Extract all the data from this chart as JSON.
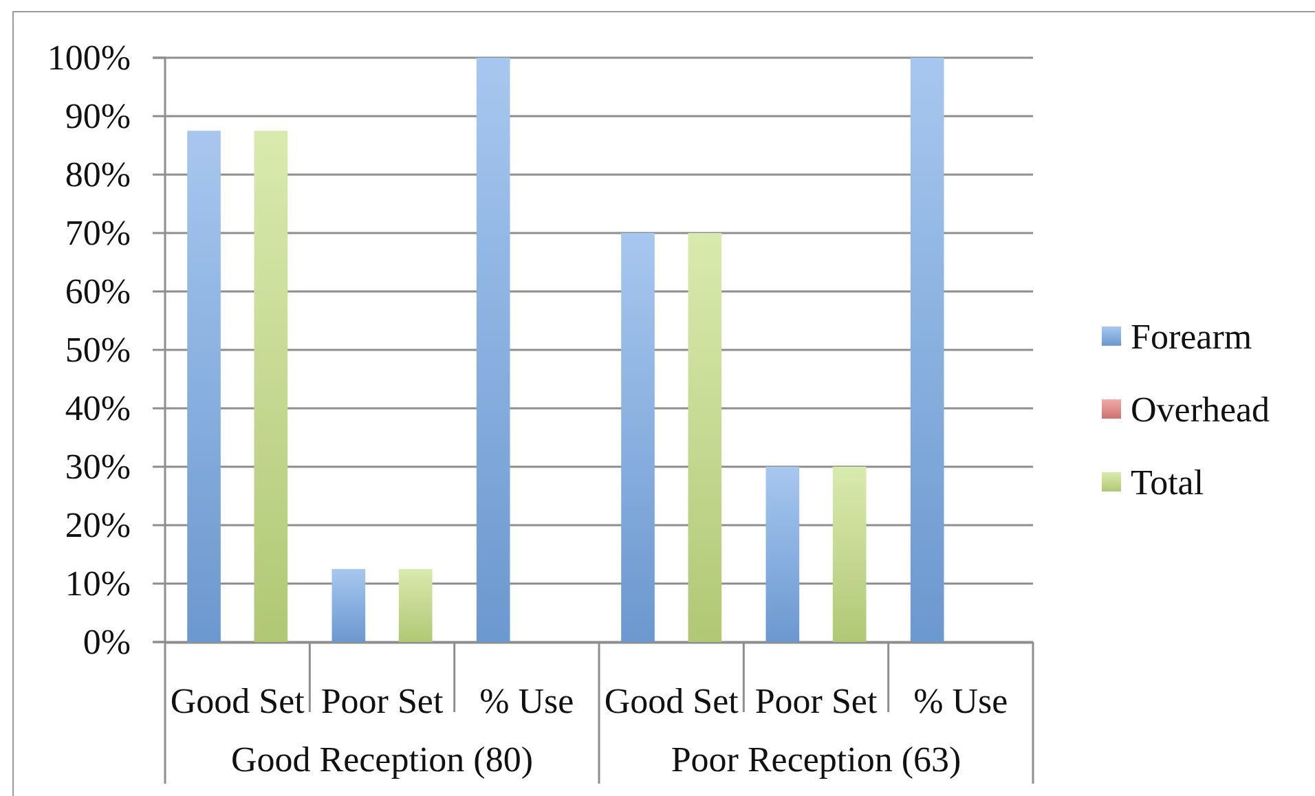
{
  "chart_data": {
    "type": "bar",
    "categories": [
      "Good Set",
      "Poor Set",
      "% Use",
      "Good Set",
      "Poor Set",
      "% Use"
    ],
    "series": [
      {
        "name": "Forearm",
        "color": "#77a9e6",
        "values": [
          87.5,
          12.5,
          100,
          70,
          30,
          100
        ]
      },
      {
        "name": "Overhead",
        "color": "#e57f7c",
        "values": [
          null,
          null,
          null,
          null,
          null,
          null
        ]
      },
      {
        "name": "Total",
        "color": "#c4df82",
        "values": [
          87.5,
          12.5,
          null,
          70,
          30,
          null
        ]
      }
    ],
    "ylim": [
      0,
      100
    ],
    "yticks": [
      {
        "value": 0,
        "label": "0%"
      },
      {
        "value": 10,
        "label": "10%"
      },
      {
        "value": 20,
        "label": "20%"
      },
      {
        "value": 30,
        "label": "30%"
      },
      {
        "value": 40,
        "label": "40%"
      },
      {
        "value": 50,
        "label": "50%"
      },
      {
        "value": 60,
        "label": "60%"
      },
      {
        "value": 70,
        "label": "70%"
      },
      {
        "value": 80,
        "label": "80%"
      },
      {
        "value": 90,
        "label": "90%"
      },
      {
        "value": 100,
        "label": "100%"
      }
    ],
    "grid": "y",
    "legend": "right",
    "annotations": [
      "Good Reception (80)",
      "Poor Reception (63)"
    ]
  }
}
